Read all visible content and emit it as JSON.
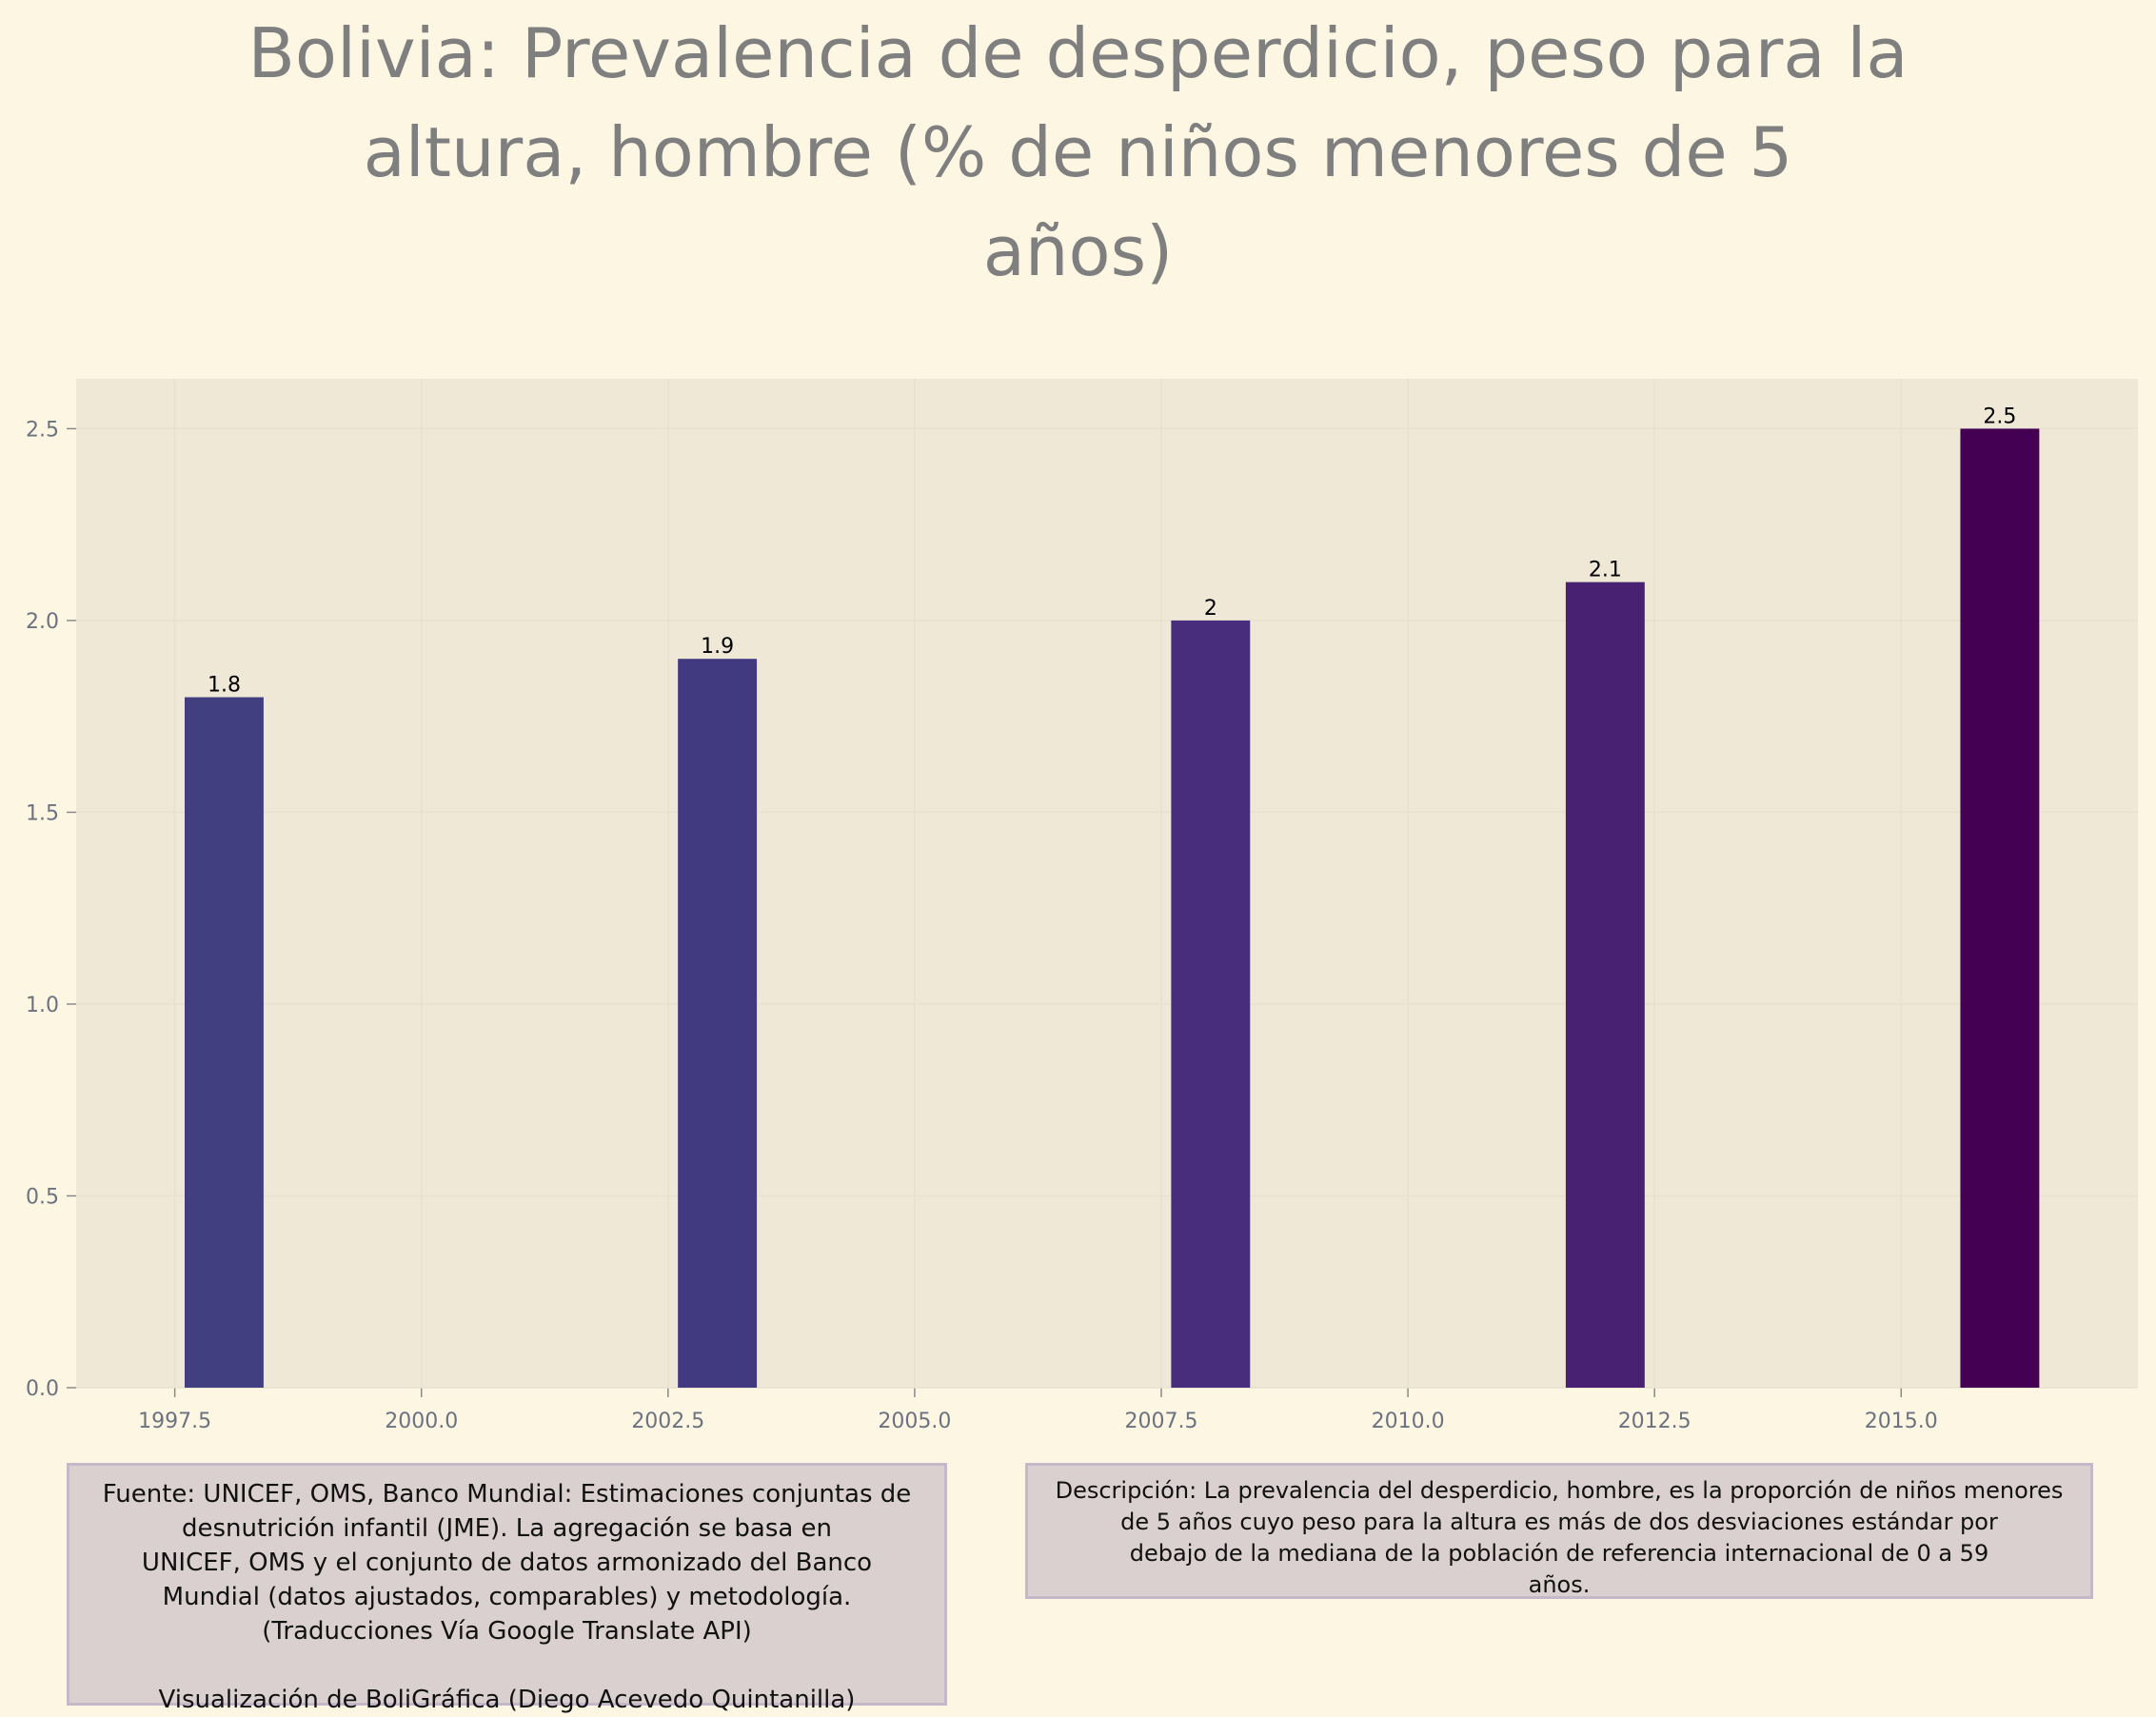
{
  "colors": {
    "background": "#fdf6e3",
    "plot_background": "#efe8d6",
    "title": "#7f7f7f",
    "tick_text": "#6b7280",
    "note_box": "#d9d0cf",
    "bar_colors": [
      "#413f80",
      "#413a80",
      "#472d7b",
      "#482173",
      "#440154"
    ]
  },
  "title_lines": [
    "Bolivia:  Prevalencia de desperdicio, peso para la",
    "altura, hombre (% de niños menores de 5",
    "años)"
  ],
  "chart_data": {
    "type": "bar",
    "title": "Bolivia:  Prevalencia de desperdicio, peso para la altura, hombre (% de niños menores de 5 años)",
    "x": [
      1998,
      2003,
      2008,
      2012,
      2016
    ],
    "values": [
      1.8,
      1.9,
      2.0,
      2.1,
      2.5
    ],
    "value_labels": [
      "1.8",
      "1.9",
      "2",
      "2.1",
      "2.5"
    ],
    "xlim": [
      1996.5,
      2017.4
    ],
    "ylim": [
      0,
      2.63
    ],
    "x_ticks": [
      1997.5,
      2000.0,
      2002.5,
      2005.0,
      2007.5,
      2010.0,
      2012.5,
      2015.0
    ],
    "x_tick_labels": [
      "1997.5",
      "2000.0",
      "2002.5",
      "2005.0",
      "2007.5",
      "2010.0",
      "2012.5",
      "2015.0"
    ],
    "y_ticks": [
      0.0,
      0.5,
      1.0,
      1.5,
      2.0,
      2.5
    ],
    "y_tick_labels": [
      "0.0",
      "0.5",
      "1.0",
      "1.5",
      "2.0",
      "2.5"
    ],
    "bar_width_years": 0.8,
    "xlabel": "",
    "ylabel": "",
    "grid": true,
    "legend": "none"
  },
  "notes": {
    "source_lines": [
      "Fuente: UNICEF, OMS, Banco Mundial: Estimaciones conjuntas de",
      "desnutrición infantil (JME). La agregación se basa en",
      "UNICEF, OMS y el conjunto de datos armonizado del Banco",
      "Mundial (datos ajustados, comparables) y metodología.",
      "(Traducciones Vía Google Translate API)"
    ],
    "credit": "Visualización de BoliGráfica (Diego Acevedo Quintanilla)",
    "description_lines": [
      "Descripción: La prevalencia del desperdicio, hombre, es la proporción de niños menores",
      "de 5 años cuyo peso para la altura es más de dos desviaciones estándar por",
      "debajo de la mediana de la población de referencia internacional de 0 a 59",
      "años."
    ]
  }
}
